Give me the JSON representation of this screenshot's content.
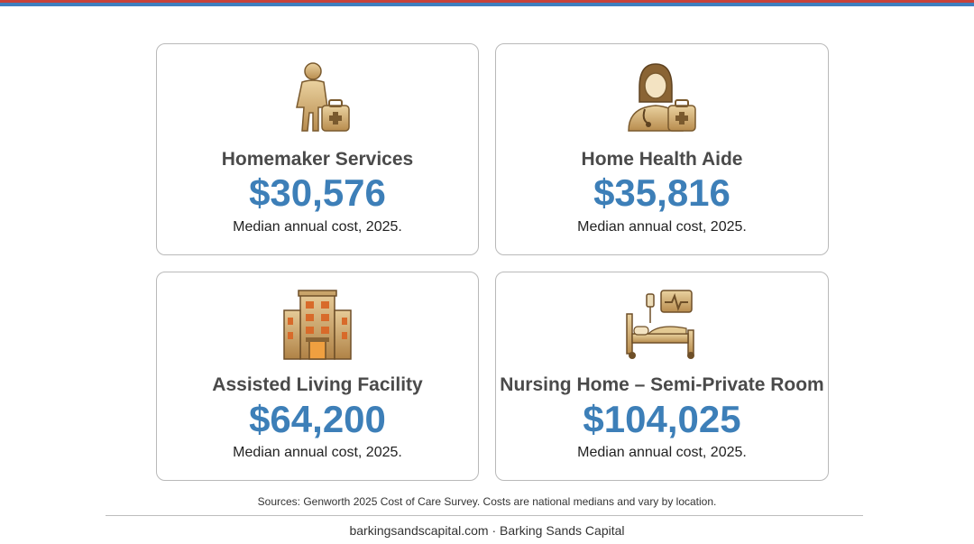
{
  "cards": [
    {
      "title": "Homemaker Services",
      "value": "$30,576",
      "caption": "Median annual cost, 2025.",
      "icon": "homemaker-icon"
    },
    {
      "title": "Home Health Aide",
      "value": "$35,816",
      "caption": "Median annual cost, 2025.",
      "icon": "home-health-aide-icon"
    },
    {
      "title": "Assisted Living Facility",
      "value": "$64,200",
      "caption": "Median annual cost, 2025.",
      "icon": "building-icon"
    },
    {
      "title": "Nursing Home – Semi-Private Room",
      "value": "$104,025",
      "caption": "Median annual cost, 2025.",
      "icon": "hospital-bed-icon"
    }
  ],
  "sources": "Sources: Genworth 2025 Cost of Care Survey. Costs are national medians and vary by location.",
  "footer": "barkingsandscapital.com · Barking Sands Capital",
  "colors": {
    "accent_blue": "#3d7fb8",
    "top_red": "#c8423a",
    "top_blue": "#3f7fbf",
    "icon_gold": "#c9a46a"
  }
}
